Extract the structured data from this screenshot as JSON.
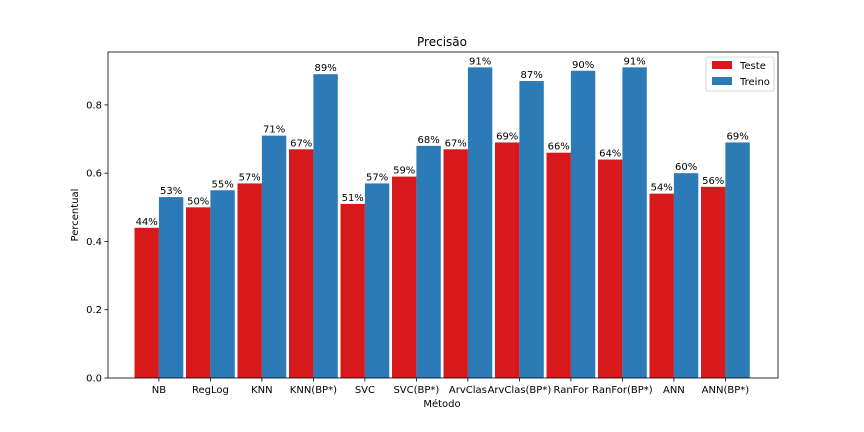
{
  "chart_data": {
    "type": "bar",
    "title": "Precisão",
    "xlabel": "Método",
    "ylabel": "Percentual",
    "ylim": [
      0,
      0.955
    ],
    "yticks": [
      0.0,
      0.2,
      0.4,
      0.6,
      0.8
    ],
    "ytick_labels": [
      "0.0",
      "0.2",
      "0.4",
      "0.6",
      "0.8"
    ],
    "categories": [
      "NB",
      "RegLog",
      "KNN",
      "KNN(BP*)",
      "SVC",
      "SVC(BP*)",
      "ArvClas",
      "ArvClas(BP*)",
      "RanFor",
      "RanFor(BP*)",
      "ANN",
      "ANN(BP*)"
    ],
    "series": [
      {
        "name": "Teste",
        "color": "#d7191c",
        "values": [
          0.44,
          0.5,
          0.57,
          0.67,
          0.51,
          0.59,
          0.67,
          0.69,
          0.66,
          0.64,
          0.54,
          0.56
        ],
        "labels": [
          "44%",
          "50%",
          "57%",
          "67%",
          "51%",
          "59%",
          "67%",
          "69%",
          "66%",
          "64%",
          "54%",
          "56%"
        ]
      },
      {
        "name": "Treino",
        "color": "#2c7bb6",
        "values": [
          0.53,
          0.55,
          0.71,
          0.89,
          0.57,
          0.68,
          0.91,
          0.87,
          0.9,
          0.91,
          0.6,
          0.69
        ],
        "labels": [
          "53%",
          "55%",
          "71%",
          "89%",
          "57%",
          "68%",
          "91%",
          "87%",
          "90%",
          "91%",
          "60%",
          "69%"
        ]
      }
    ],
    "legend_position": "top-right",
    "grid": false
  }
}
